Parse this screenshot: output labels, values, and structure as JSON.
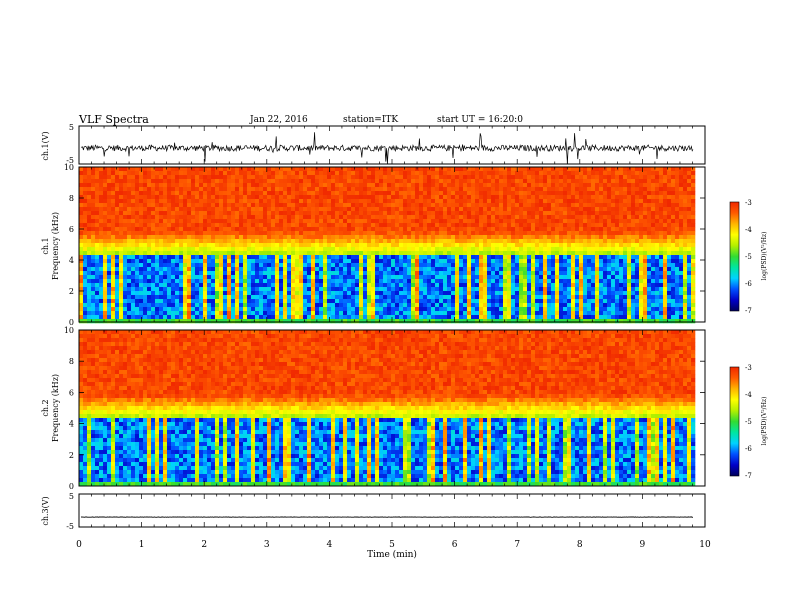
{
  "header": {
    "title": "VLF Spectra",
    "date": "Jan 22, 2016",
    "station": "station=ITK",
    "start": "start UT = 16:20:0"
  },
  "panels": {
    "ch1_label": "ch.1(V)",
    "ch3_label": "ch.3(V)",
    "spec1_label_a": "ch.1",
    "spec1_label_b": "Frequency (kHz)",
    "spec2_label_a": "ch.2",
    "spec2_label_b": "Frequency (kHz)",
    "colorbar_label": "log(PSD)(V²/Hz)"
  },
  "colors": {
    "scale": [
      "#00005a",
      "#0000c8",
      "#0050ff",
      "#00d2ff",
      "#00e6a0",
      "#32dc32",
      "#b4f000",
      "#ffff00",
      "#ffb400",
      "#ff5a00",
      "#f02800"
    ]
  },
  "chart_data": [
    {
      "type": "line",
      "name": "ch.1 waveform",
      "ylabel": "ch.1(V)",
      "ylim": [
        -5,
        5
      ],
      "yticks": [
        5,
        -5
      ],
      "xlim": [
        0,
        10
      ],
      "baseline": -0.8,
      "noise_amplitude": 1.6,
      "spike_amplitude": 4.5
    },
    {
      "type": "heatmap",
      "name": "ch.1 spectrogram",
      "ylabel": "ch.1 Frequency (kHz)",
      "ylim": [
        0,
        10
      ],
      "yticks": [
        0,
        2,
        4,
        6,
        8,
        10
      ],
      "xlim": [
        0,
        10
      ],
      "colorbar": {
        "label": "log(PSD)(V²/Hz)",
        "range": [
          -7,
          -3
        ],
        "ticks": [
          -3,
          -4,
          -5,
          -6,
          -7
        ]
      }
    },
    {
      "type": "heatmap",
      "name": "ch.2 spectrogram",
      "ylabel": "ch.2 Frequency (kHz)",
      "ylim": [
        0,
        10
      ],
      "yticks": [
        0,
        2,
        4,
        6,
        8,
        10
      ],
      "xlim": [
        0,
        10
      ],
      "colorbar": {
        "label": "log(PSD)(V²/Hz)",
        "range": [
          -7,
          -3
        ],
        "ticks": [
          -3,
          -4,
          -5,
          -6,
          -7
        ]
      }
    },
    {
      "type": "line",
      "name": "ch.3 waveform",
      "ylabel": "ch.3(V)",
      "ylim": [
        -5,
        5
      ],
      "yticks": [
        5,
        -5
      ],
      "xlim": [
        0,
        10
      ],
      "baseline": -2.0,
      "noise_amplitude": 0.1
    }
  ],
  "xaxis": {
    "label": "Time (min)",
    "ticks": [
      0,
      1,
      2,
      3,
      4,
      5,
      6,
      7,
      8,
      9,
      10
    ],
    "data_end": 9.82
  }
}
